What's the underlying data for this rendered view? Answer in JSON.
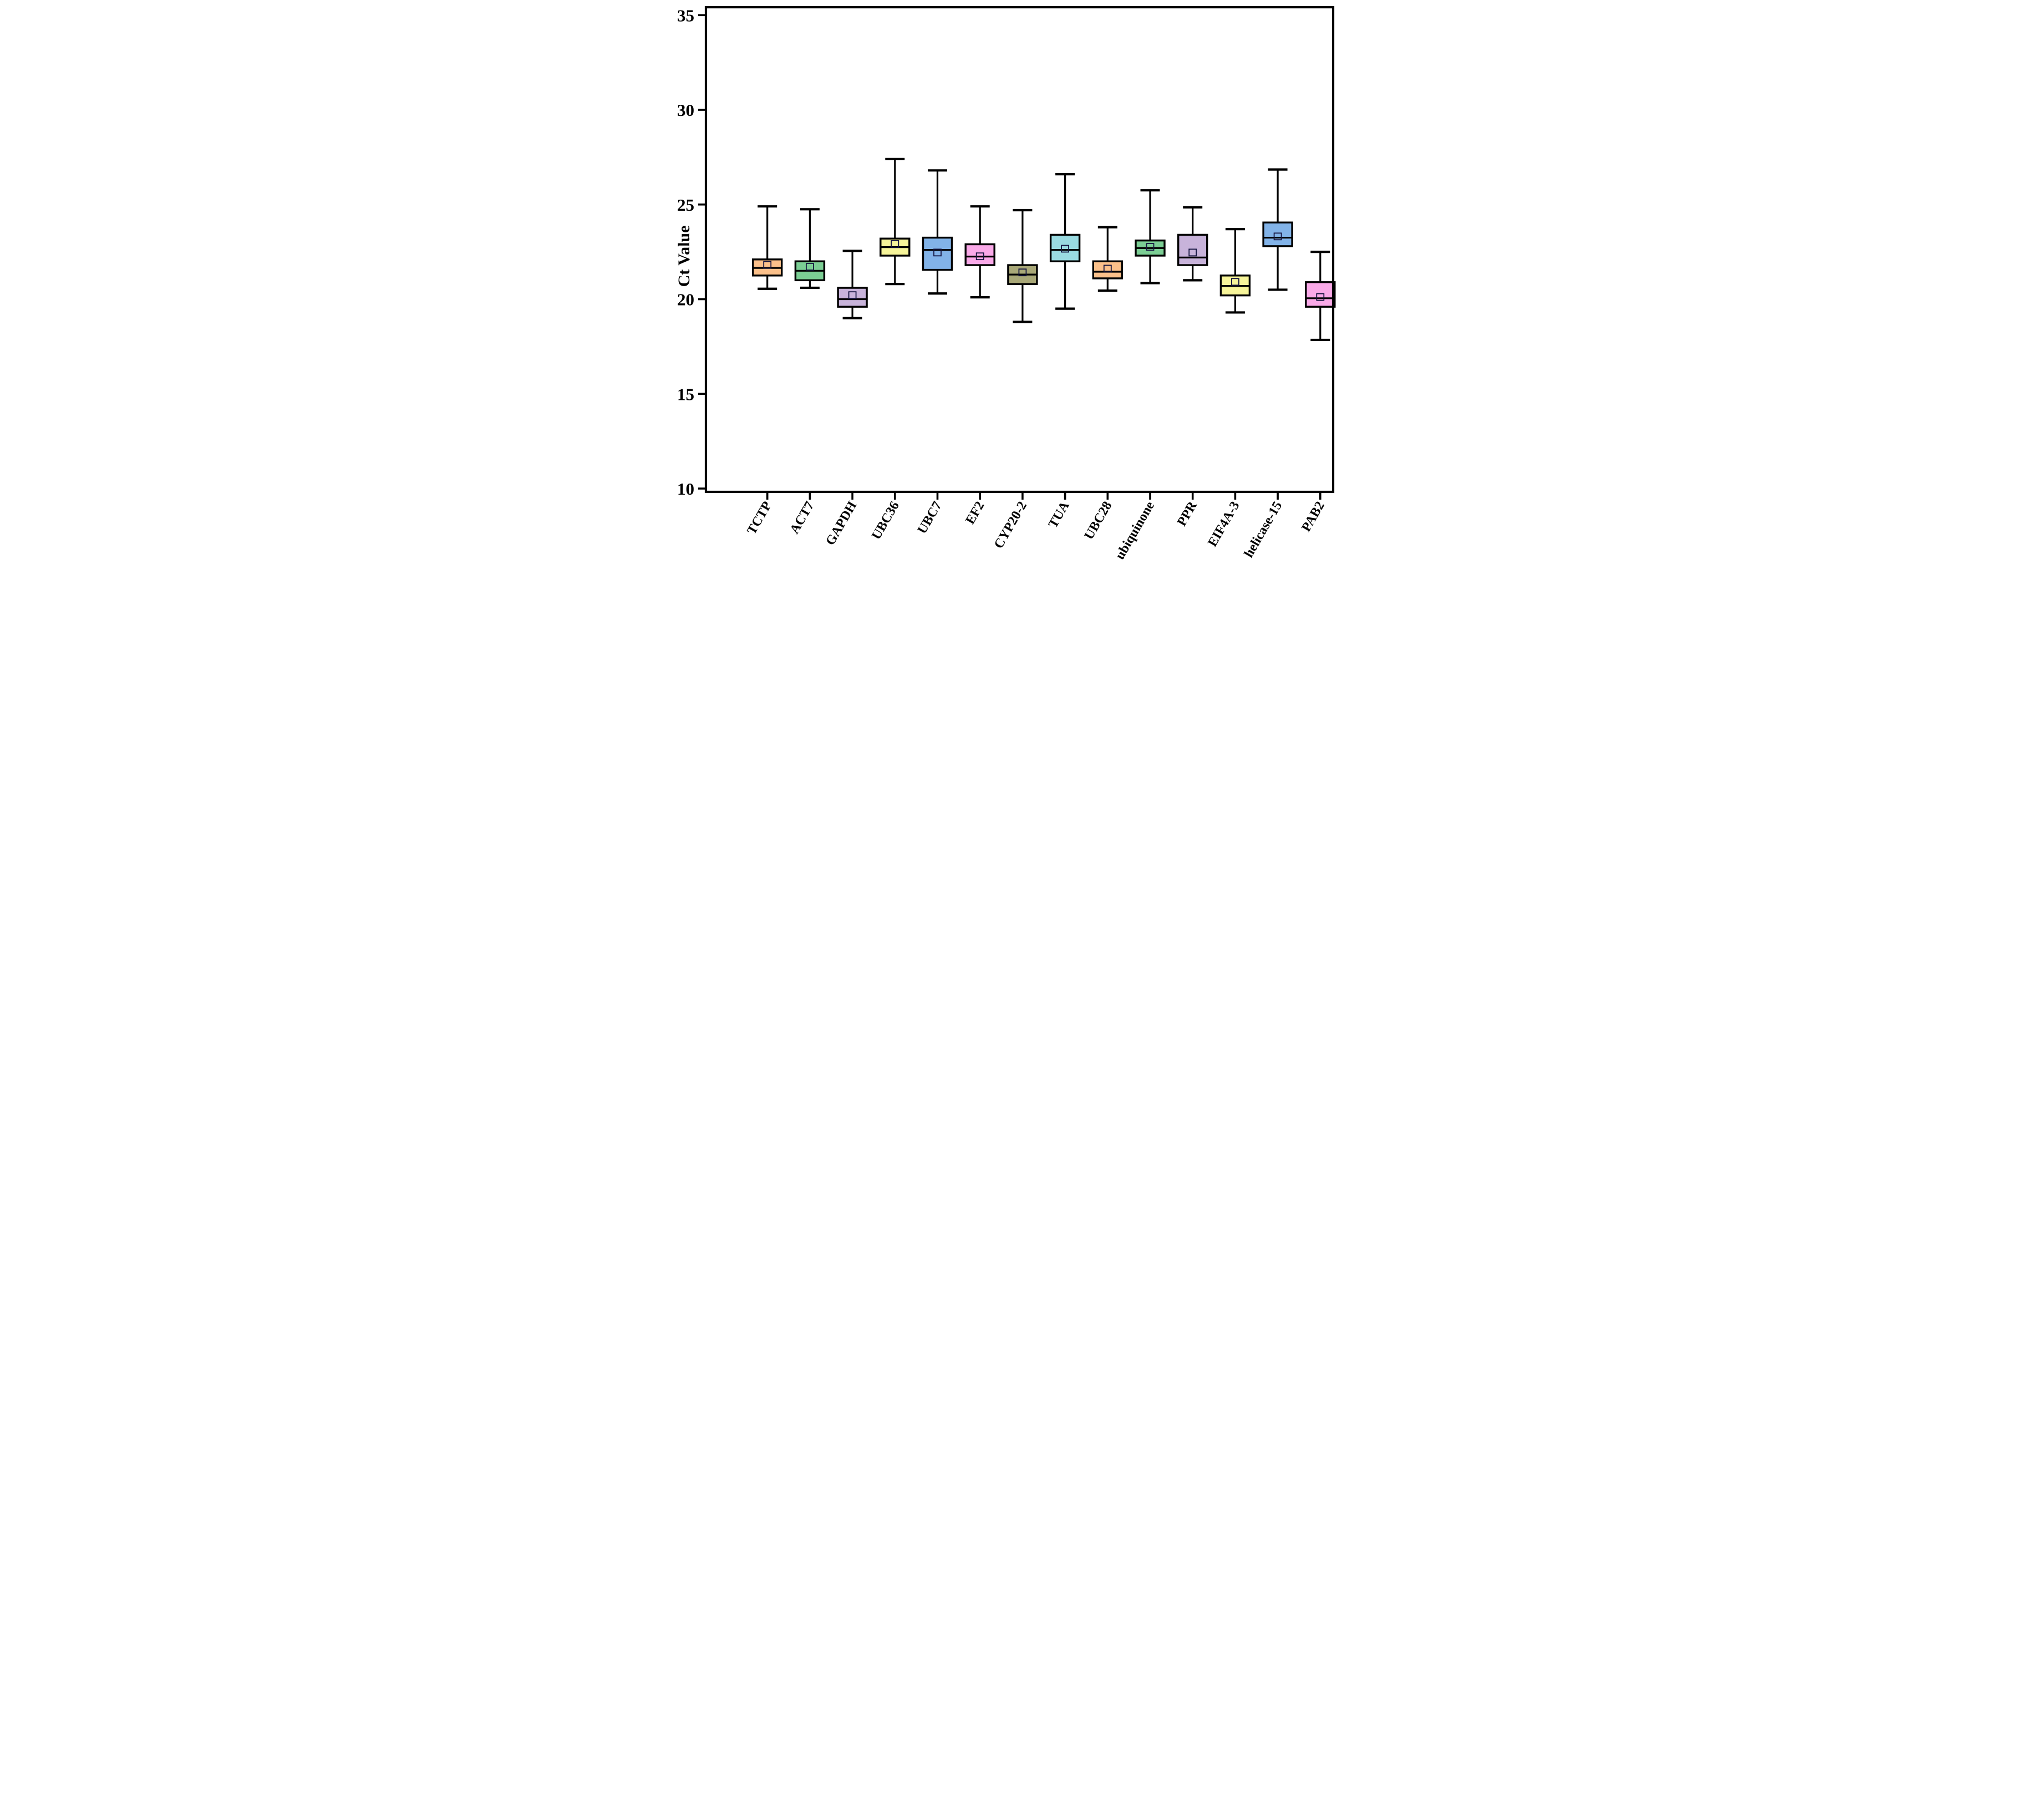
{
  "figure": {
    "background_color": "#ffffff",
    "frame_color": "#000000"
  },
  "chart_data": {
    "type": "box",
    "title": "",
    "xlabel": "",
    "ylabel": "Ct Value",
    "ylim": [
      10,
      35
    ],
    "yticks": [
      10,
      15,
      20,
      25,
      30,
      35
    ],
    "grid": false,
    "legend": "none",
    "x_label_rotation_deg": -60,
    "categories": [
      "TCTP",
      "ACT7",
      "GAPDH",
      "UBC36",
      "UBC7",
      "EF2",
      "CYP20-2",
      "TUA",
      "UBC28",
      "ubiquinone",
      "PPR",
      "EIF4A-3",
      "helicase-15",
      "PAB2"
    ],
    "series": [
      {
        "name": "TCTP",
        "color": "#FBC08A",
        "whisker_low": 20.55,
        "q1": 21.25,
        "median": 21.65,
        "q3": 22.1,
        "whisker_high": 24.9,
        "mean": 21.8
      },
      {
        "name": "ACT7",
        "color": "#7BCE94",
        "whisker_low": 20.6,
        "q1": 21.0,
        "median": 21.5,
        "q3": 22.0,
        "whisker_high": 24.75,
        "mean": 21.7
      },
      {
        "name": "GAPDH",
        "color": "#C8B3DA",
        "whisker_low": 19.0,
        "q1": 19.6,
        "median": 20.0,
        "q3": 20.6,
        "whisker_high": 22.55,
        "mean": 20.2
      },
      {
        "name": "UBC36",
        "color": "#F7F59A",
        "whisker_low": 20.8,
        "q1": 22.3,
        "median": 22.75,
        "q3": 23.2,
        "whisker_high": 27.4,
        "mean": 22.9
      },
      {
        "name": "UBC7",
        "color": "#82B3E8",
        "whisker_low": 20.3,
        "q1": 21.55,
        "median": 22.6,
        "q3": 23.25,
        "whisker_high": 26.8,
        "mean": 22.45
      },
      {
        "name": "EF2",
        "color": "#FAA9E8",
        "whisker_low": 20.1,
        "q1": 21.8,
        "median": 22.25,
        "q3": 22.9,
        "whisker_high": 24.9,
        "mean": 22.25
      },
      {
        "name": "CYP20-2",
        "color": "#A9A878",
        "whisker_low": 18.8,
        "q1": 20.8,
        "median": 21.3,
        "q3": 21.8,
        "whisker_high": 24.7,
        "mean": 21.4
      },
      {
        "name": "TUA",
        "color": "#9ADBE1",
        "whisker_low": 19.5,
        "q1": 22.0,
        "median": 22.6,
        "q3": 23.4,
        "whisker_high": 26.6,
        "mean": 22.65
      },
      {
        "name": "UBC28",
        "color": "#FBC08A",
        "whisker_low": 20.45,
        "q1": 21.1,
        "median": 21.45,
        "q3": 22.0,
        "whisker_high": 23.8,
        "mean": 21.6
      },
      {
        "name": "ubiquinone",
        "color": "#7BCE94",
        "whisker_low": 20.85,
        "q1": 22.3,
        "median": 22.7,
        "q3": 23.1,
        "whisker_high": 25.75,
        "mean": 22.75
      },
      {
        "name": "PPR",
        "color": "#C8B3DA",
        "whisker_low": 21.0,
        "q1": 21.8,
        "median": 22.2,
        "q3": 23.4,
        "whisker_high": 24.85,
        "mean": 22.45
      },
      {
        "name": "EIF4A-3",
        "color": "#F7F59A",
        "whisker_low": 19.3,
        "q1": 20.2,
        "median": 20.7,
        "q3": 21.25,
        "whisker_high": 23.7,
        "mean": 20.9
      },
      {
        "name": "helicase-15",
        "color": "#82B3E8",
        "whisker_low": 20.5,
        "q1": 22.8,
        "median": 23.25,
        "q3": 24.05,
        "whisker_high": 26.85,
        "mean": 23.3
      },
      {
        "name": "PAB2",
        "color": "#FAA9E8",
        "whisker_low": 17.85,
        "q1": 19.6,
        "median": 20.05,
        "q3": 20.9,
        "whisker_high": 22.5,
        "mean": 20.1
      }
    ],
    "marker_legend": {
      "open_square": "mean",
      "horizontal_line_in_box": "median"
    }
  }
}
